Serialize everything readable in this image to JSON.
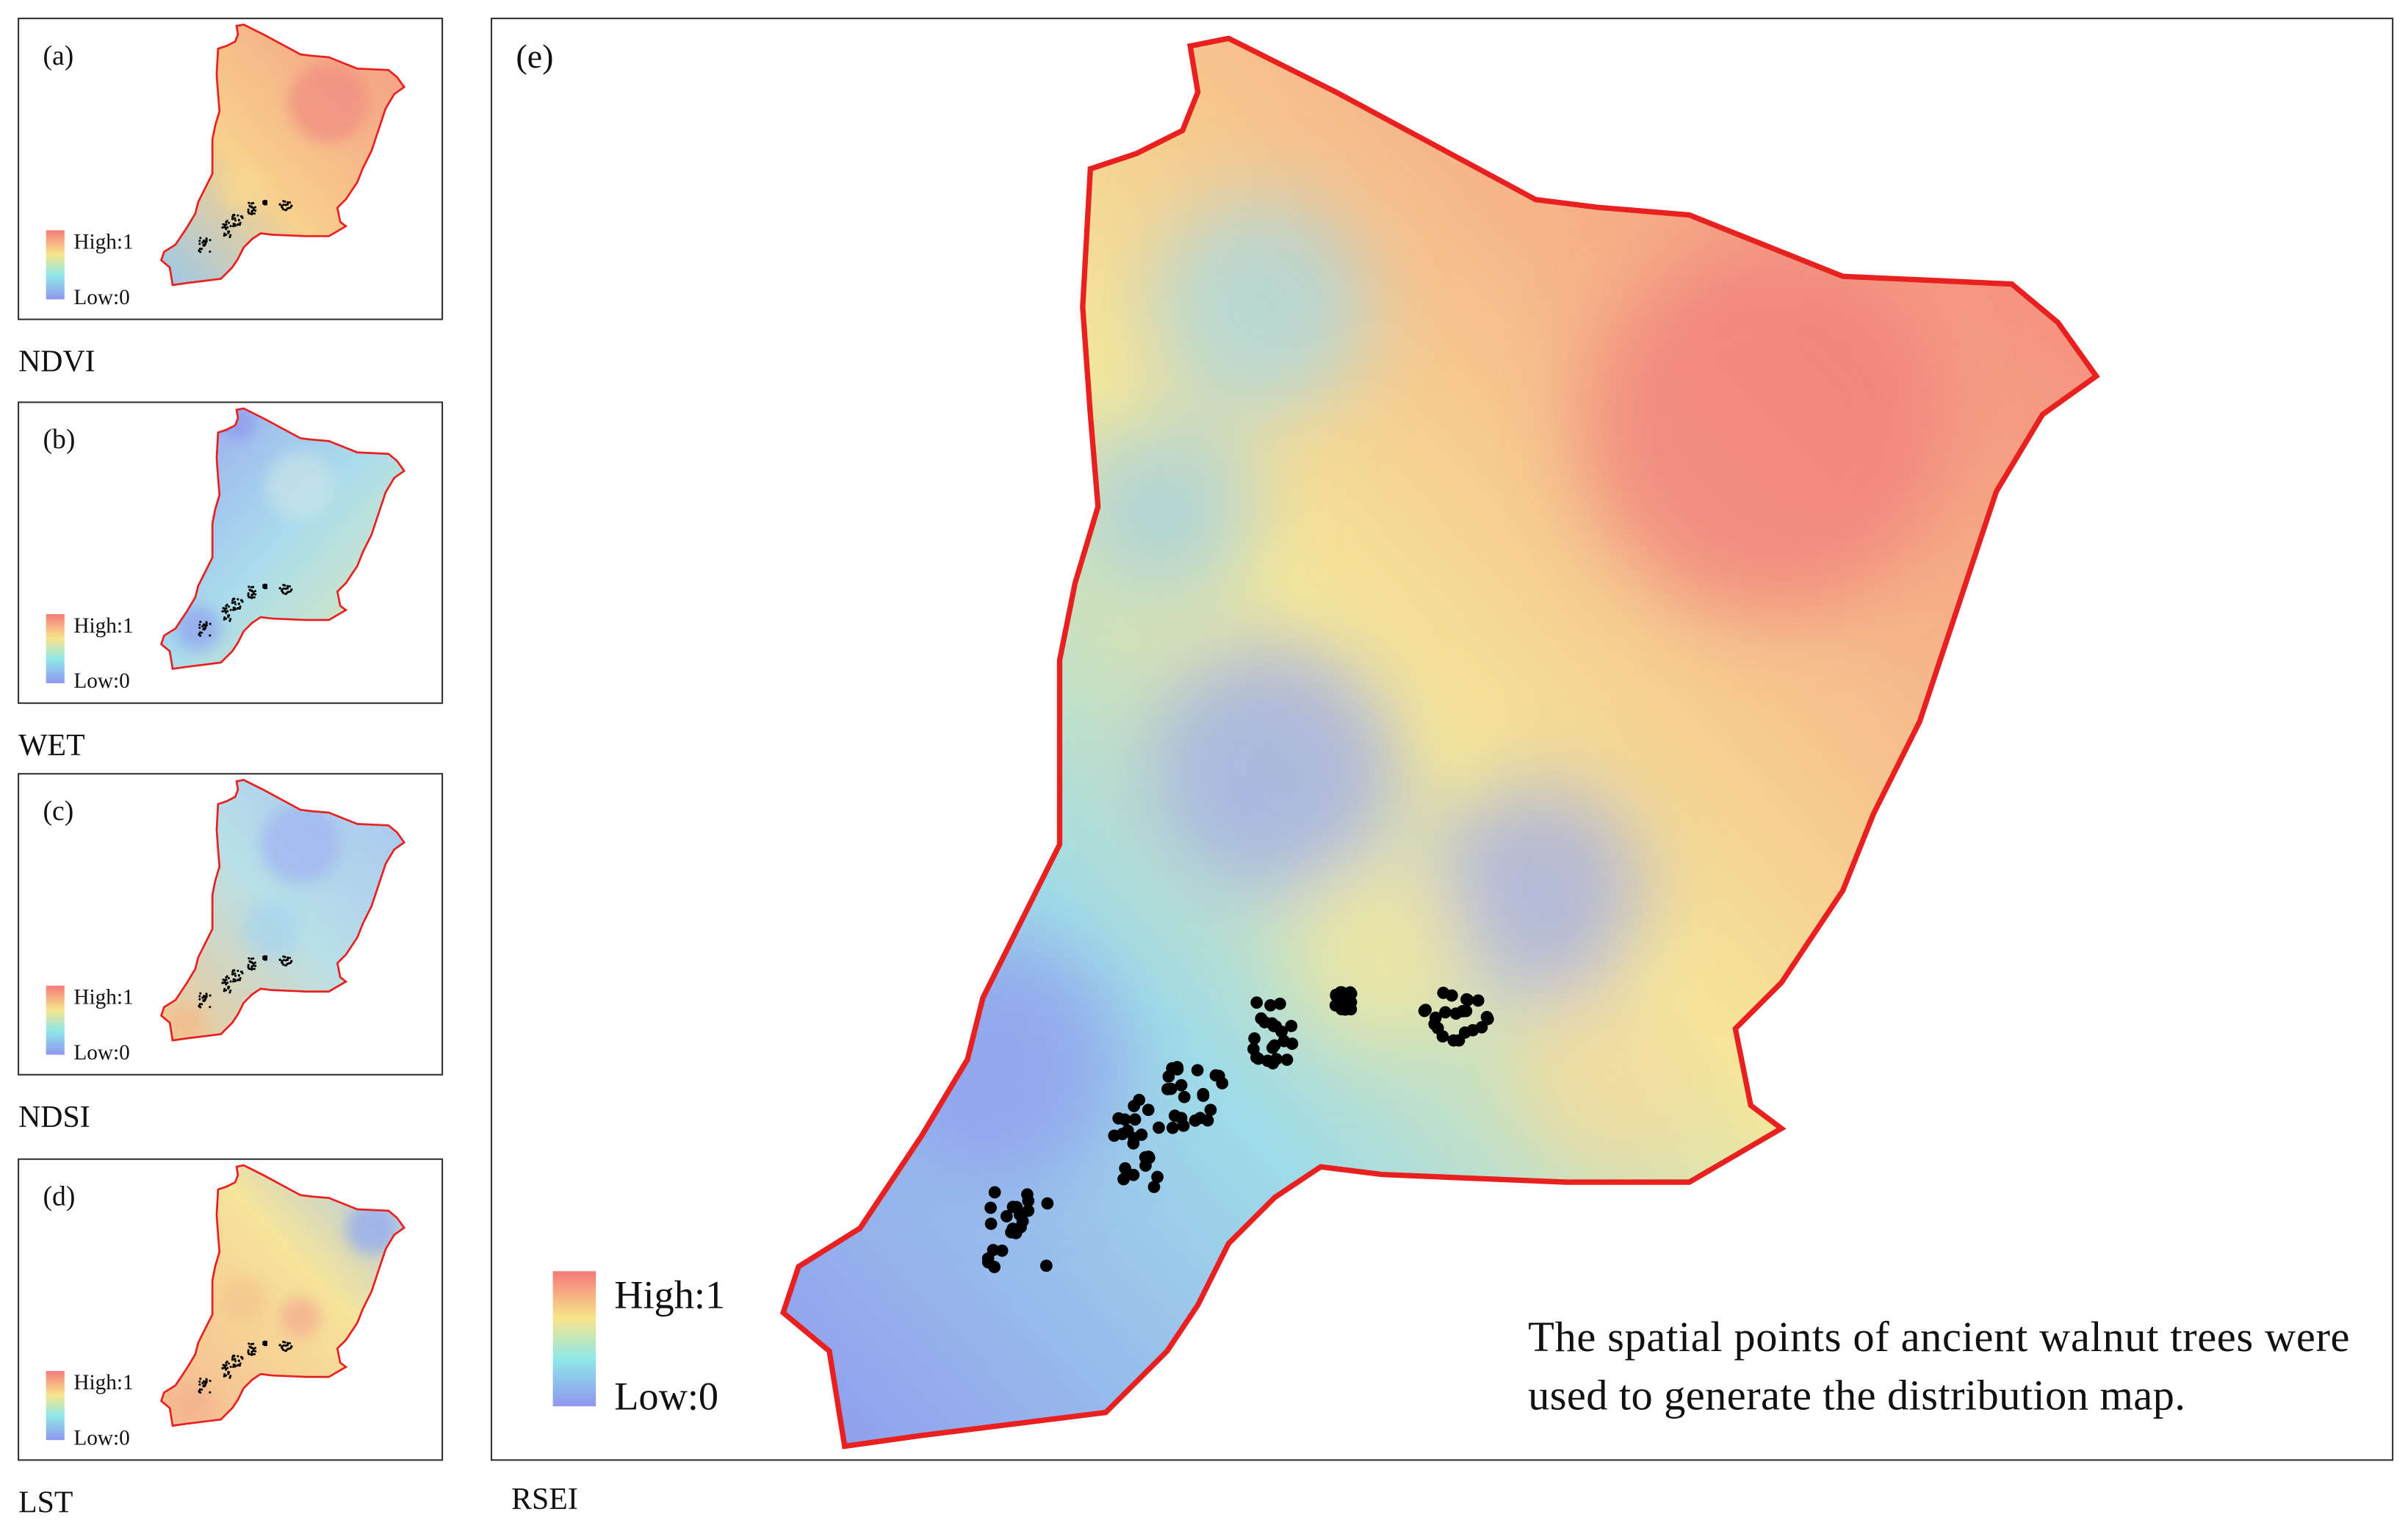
{
  "panels": [
    {
      "label": "(a)",
      "legend_high": "High:1",
      "legend_low": "Low:0",
      "caption": "NDVI"
    },
    {
      "label": "(b)",
      "legend_high": "High:1",
      "legend_low": "Low:0",
      "caption": "WET"
    },
    {
      "label": "(c)",
      "legend_high": "High:1",
      "legend_low": "Low:0",
      "caption": "NDSI"
    },
    {
      "label": "(d)",
      "legend_high": "High:1",
      "legend_low": "Low:0",
      "caption": "LST"
    }
  ],
  "main": {
    "label": "(e)",
    "legend_high": "High:1",
    "legend_low": "Low:0",
    "caption": "RSEI",
    "note": [
      "The spatial points of ancient walnut trees were",
      "used to generate the distribution map."
    ]
  }
}
